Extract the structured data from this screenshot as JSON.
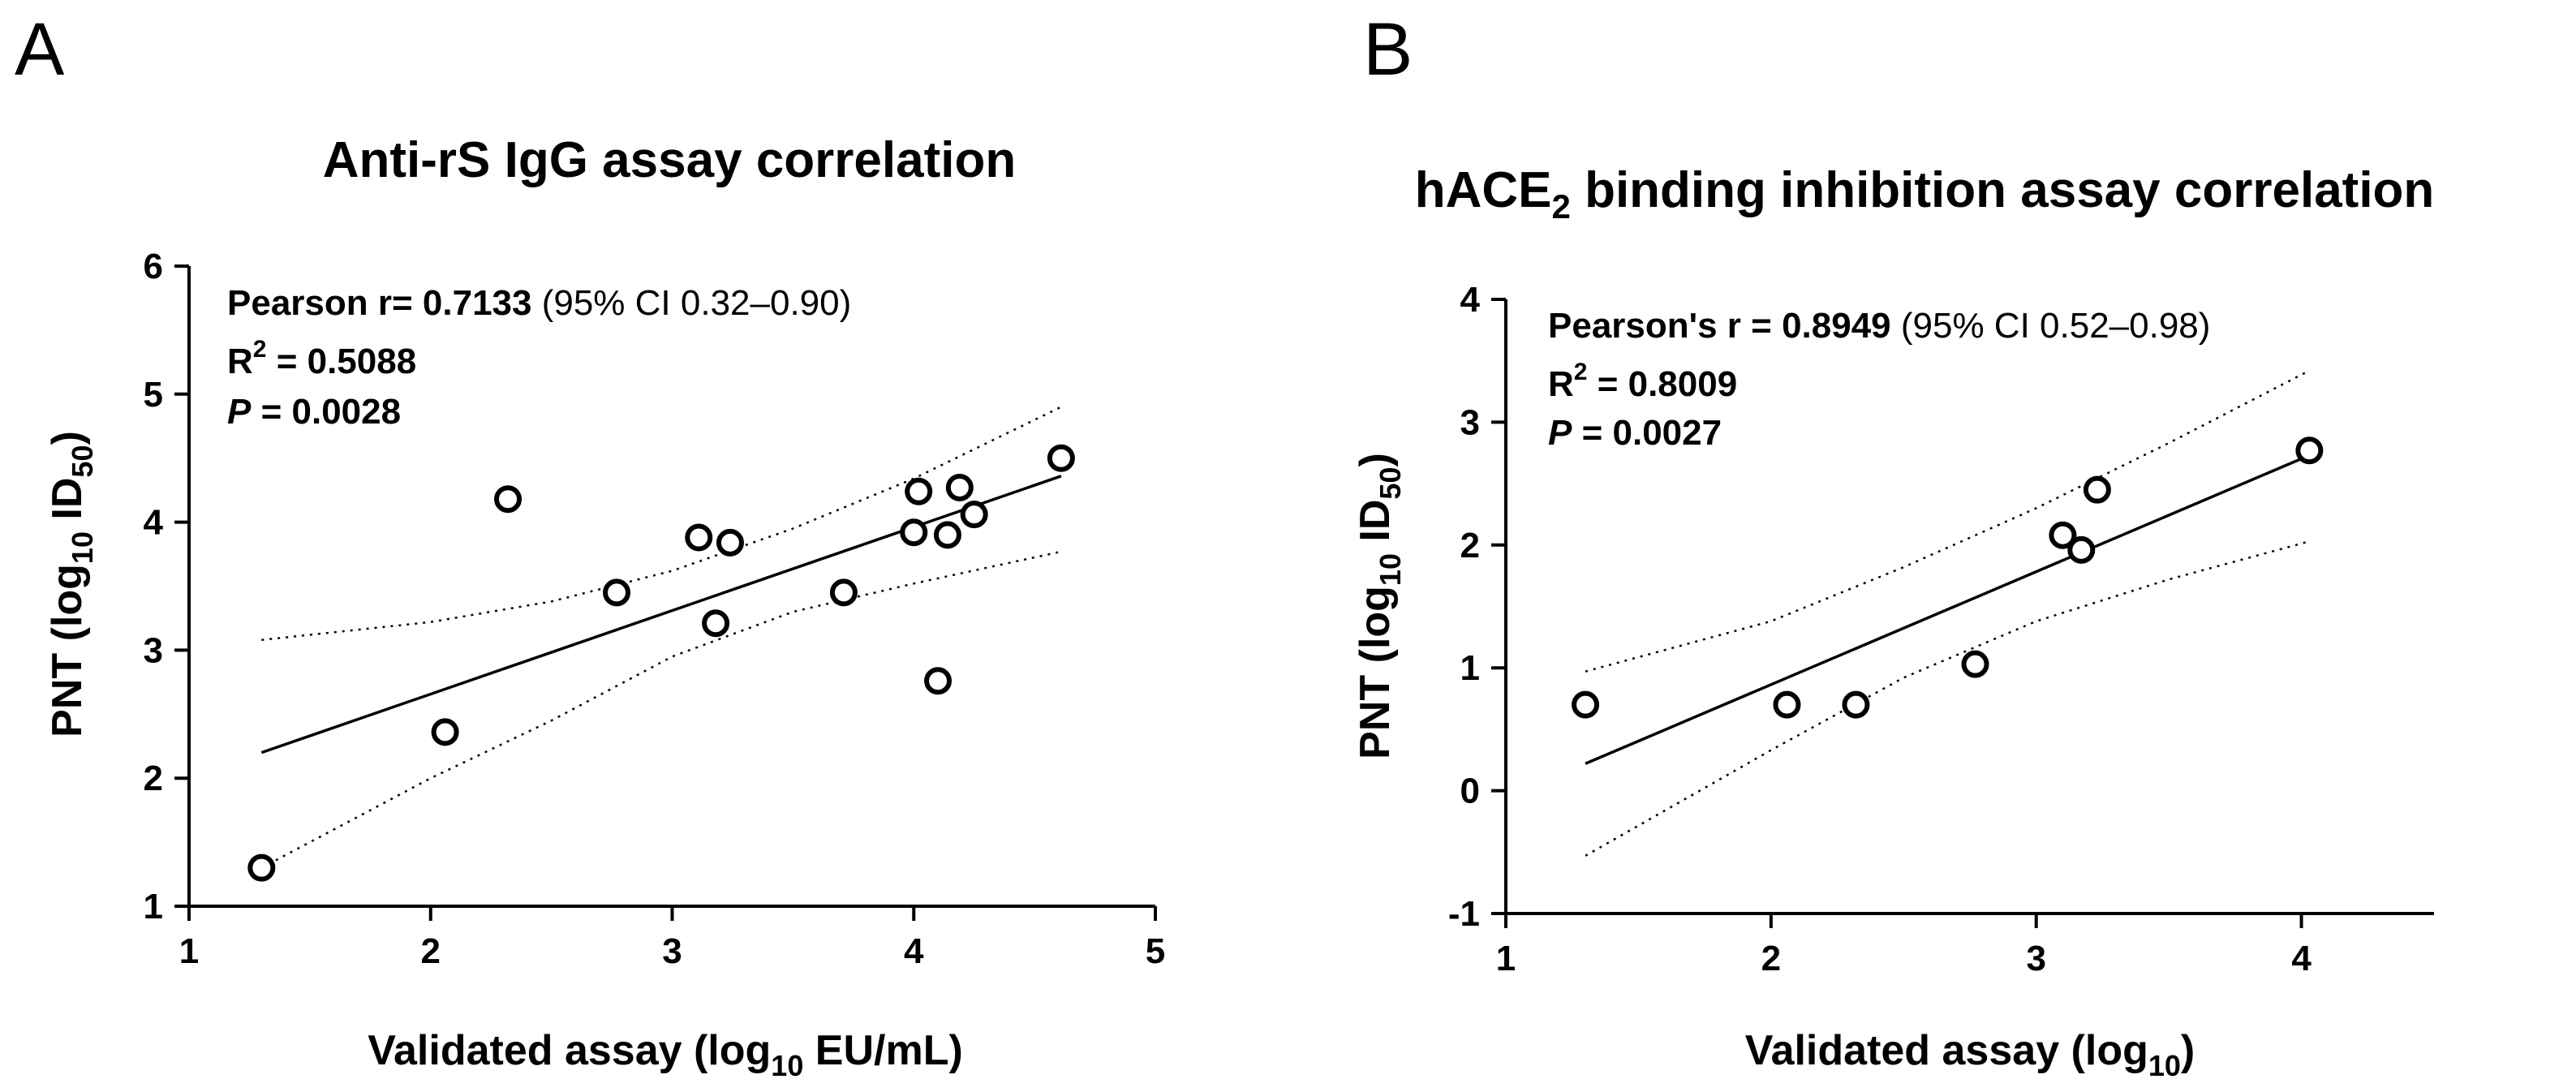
{
  "chart_data": [
    {
      "panel": "A",
      "type": "scatter",
      "title": "Anti-rS IgG assay correlation",
      "title_sub": "",
      "title_tail": "",
      "xlabel": {
        "pre": "Validated assay (log",
        "sub": "10",
        "post": " EU/mL)"
      },
      "ylabel": {
        "pre": "PNT (log",
        "sub": "10",
        "mid": " ID",
        "sub2": "50",
        "post": ")"
      },
      "xlim": [
        1,
        5
      ],
      "ylim": [
        1,
        6
      ],
      "xticks": [
        "1",
        "2",
        "3",
        "4",
        "5"
      ],
      "yticks": [
        "1",
        "2",
        "3",
        "4",
        "5",
        "6"
      ],
      "points": [
        {
          "x": 1.3,
          "y": 1.3
        },
        {
          "x": 2.06,
          "y": 2.36
        },
        {
          "x": 2.32,
          "y": 4.18
        },
        {
          "x": 2.77,
          "y": 3.45
        },
        {
          "x": 3.11,
          "y": 3.88
        },
        {
          "x": 3.18,
          "y": 3.21
        },
        {
          "x": 3.24,
          "y": 3.84
        },
        {
          "x": 3.71,
          "y": 3.45
        },
        {
          "x": 4.0,
          "y": 3.92
        },
        {
          "x": 4.02,
          "y": 4.24
        },
        {
          "x": 4.1,
          "y": 2.76
        },
        {
          "x": 4.14,
          "y": 3.9
        },
        {
          "x": 4.19,
          "y": 4.27
        },
        {
          "x": 4.25,
          "y": 4.06
        },
        {
          "x": 4.61,
          "y": 4.5
        }
      ],
      "fit": {
        "x1": 1.3,
        "y1": 2.2,
        "x2": 4.61,
        "y2": 4.36
      },
      "ci_upper": [
        [
          1.3,
          3.08
        ],
        [
          2.0,
          3.22
        ],
        [
          2.5,
          3.38
        ],
        [
          3.0,
          3.62
        ],
        [
          3.5,
          3.95
        ],
        [
          4.0,
          4.34
        ],
        [
          4.61,
          4.9
        ]
      ],
      "ci_lower": [
        [
          1.3,
          1.3
        ],
        [
          2.0,
          2.0
        ],
        [
          2.5,
          2.45
        ],
        [
          3.0,
          2.95
        ],
        [
          3.5,
          3.3
        ],
        [
          4.0,
          3.52
        ],
        [
          4.61,
          3.77
        ]
      ],
      "stats": {
        "r_label": "Pearson r= ",
        "r_value": "0.7133",
        "ci_text": " (95% CI 0.32–0.90)",
        "r2_pre": "R",
        "r2_sup": "2",
        "r2_value": " = 0.5088",
        "p_label": "P",
        "p_value": " = 0.0028"
      }
    },
    {
      "panel": "B",
      "type": "scatter",
      "title": "hACE",
      "title_sub": "2",
      "title_tail": " binding inhibition assay correlation",
      "xlabel": {
        "pre": "Validated assay (log",
        "sub": "10",
        "post": ")"
      },
      "ylabel": {
        "pre": "PNT (log",
        "sub": "10",
        "mid": " ID",
        "sub2": "50",
        "post": ")"
      },
      "xlim": [
        1,
        4.5
      ],
      "ylim": [
        -1,
        4
      ],
      "xticks": [
        "1",
        "2",
        "3",
        "4"
      ],
      "yticks": [
        "-1",
        "0",
        "1",
        "2",
        "3",
        "4"
      ],
      "points": [
        {
          "x": 1.3,
          "y": 0.7
        },
        {
          "x": 2.06,
          "y": 0.7
        },
        {
          "x": 2.32,
          "y": 0.7
        },
        {
          "x": 2.77,
          "y": 1.03
        },
        {
          "x": 3.1,
          "y": 2.08
        },
        {
          "x": 3.17,
          "y": 1.96
        },
        {
          "x": 3.23,
          "y": 2.45
        },
        {
          "x": 4.03,
          "y": 2.77
        }
      ],
      "fit": {
        "x1": 1.3,
        "y1": 0.22,
        "x2": 4.03,
        "y2": 2.73
      },
      "ci_upper": [
        [
          1.3,
          0.97
        ],
        [
          2.0,
          1.38
        ],
        [
          2.5,
          1.82
        ],
        [
          3.0,
          2.3
        ],
        [
          3.5,
          2.83
        ],
        [
          4.03,
          3.42
        ]
      ],
      "ci_lower": [
        [
          1.3,
          -0.53
        ],
        [
          2.0,
          0.33
        ],
        [
          2.5,
          0.92
        ],
        [
          3.0,
          1.38
        ],
        [
          3.5,
          1.72
        ],
        [
          4.03,
          2.03
        ]
      ],
      "stats": {
        "r_label": "Pearson's r = ",
        "r_value": "0.8949",
        "ci_text": " (95% CI 0.52–0.98)",
        "r2_pre": "R",
        "r2_sup": "2",
        "r2_value": " = 0.8009",
        "p_label": "P",
        "p_value": " = 0.0027"
      }
    }
  ]
}
